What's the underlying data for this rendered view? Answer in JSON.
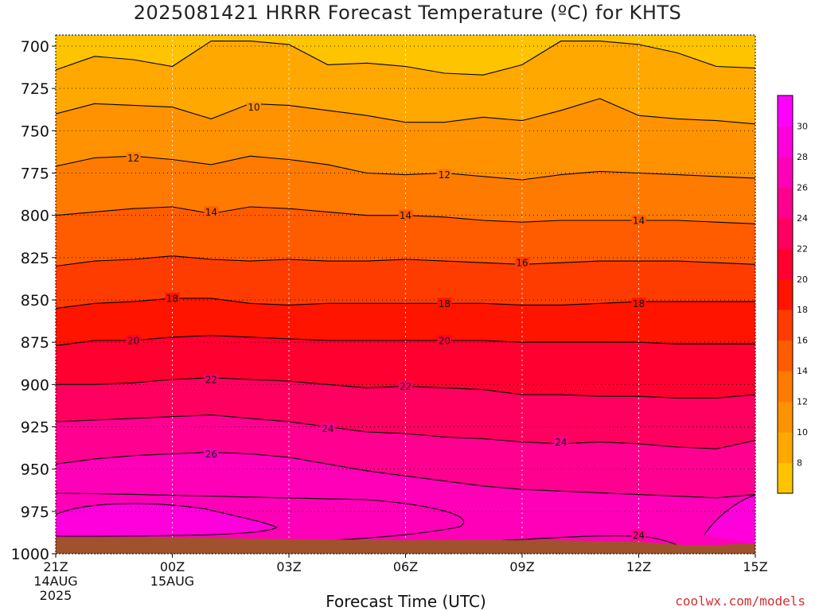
{
  "title": "2025081421 HRRR Forecast Temperature (ºC) for KHTS",
  "xlabel": "Forecast Time (UTC)",
  "credit": "coolwx.com/models",
  "chart_data": {
    "type": "heatmap",
    "title": "2025081421 HRRR Forecast Temperature (ºC) for KHTS",
    "xlabel": "Forecast Time (UTC)",
    "ylabel": "",
    "x_ticks": [
      {
        "label": "21Z",
        "sub": [
          "14AUG",
          "2025"
        ],
        "hour": 0
      },
      {
        "label": "00Z",
        "sub": [
          "15AUG"
        ],
        "hour": 3
      },
      {
        "label": "03Z",
        "sub": [],
        "hour": 6
      },
      {
        "label": "06Z",
        "sub": [],
        "hour": 9
      },
      {
        "label": "09Z",
        "sub": [],
        "hour": 12
      },
      {
        "label": "12Z",
        "sub": [],
        "hour": 15
      },
      {
        "label": "15Z",
        "sub": [],
        "hour": 18
      }
    ],
    "y_ticks": [
      700,
      725,
      750,
      775,
      800,
      825,
      850,
      875,
      900,
      925,
      950,
      975,
      1000
    ],
    "xlim": [
      0,
      18
    ],
    "ylim": [
      1000,
      697
    ],
    "grid": true,
    "colorbar_ticks": [
      8,
      10,
      12,
      14,
      16,
      18,
      20,
      22,
      24,
      26,
      28,
      30
    ],
    "colorbar_levels": [
      {
        "from": 6,
        "to": 8,
        "color": "#FFC400"
      },
      {
        "from": 8,
        "to": 10,
        "color": "#FFA800"
      },
      {
        "from": 10,
        "to": 12,
        "color": "#FF9200"
      },
      {
        "from": 12,
        "to": 14,
        "color": "#FF7A00"
      },
      {
        "from": 14,
        "to": 16,
        "color": "#FF5C00"
      },
      {
        "from": 16,
        "to": 18,
        "color": "#FF3C00"
      },
      {
        "from": 18,
        "to": 20,
        "color": "#FF1400"
      },
      {
        "from": 20,
        "to": 22,
        "color": "#FF0030"
      },
      {
        "from": 22,
        "to": 24,
        "color": "#FF0060"
      },
      {
        "from": 24,
        "to": 26,
        "color": "#FF0090"
      },
      {
        "from": 26,
        "to": 28,
        "color": "#FF00B8"
      },
      {
        "from": 28,
        "to": 30,
        "color": "#FF00DC"
      },
      {
        "from": 30,
        "to": 32,
        "color": "#FF00FF"
      }
    ],
    "contours": [
      {
        "level": 8,
        "label": "",
        "pressures": [
          714,
          706,
          708,
          712,
          697,
          697,
          699,
          711,
          710,
          712,
          716,
          717,
          711,
          697,
          697,
          699,
          704,
          712,
          713
        ]
      },
      {
        "level": 10,
        "label": "10",
        "pressures": [
          740,
          734,
          735,
          736,
          743,
          734,
          735,
          738,
          741,
          745,
          745,
          742,
          744,
          738,
          731,
          741,
          743,
          744,
          746
        ]
      },
      {
        "level": 12,
        "label": "12",
        "pressures": [
          771,
          766,
          765,
          767,
          770,
          765,
          767,
          770,
          775,
          776,
          775,
          777,
          779,
          776,
          774,
          775,
          776,
          777,
          778
        ]
      },
      {
        "level": 14,
        "label": "14",
        "pressures": [
          800,
          798,
          796,
          795,
          799,
          795,
          796,
          798,
          800,
          800,
          801,
          803,
          804,
          803,
          803,
          803,
          803,
          804,
          805
        ]
      },
      {
        "level": 16,
        "label": "16",
        "pressures": [
          830,
          827,
          826,
          824,
          826,
          827,
          826,
          827,
          827,
          826,
          827,
          828,
          829,
          828,
          827,
          827,
          827,
          828,
          829
        ]
      },
      {
        "level": 18,
        "label": "18",
        "pressures": [
          855,
          852,
          851,
          849,
          849,
          852,
          853,
          852,
          852,
          852,
          852,
          852,
          853,
          853,
          852,
          851,
          851,
          851,
          851
        ]
      },
      {
        "level": 20,
        "label": "20",
        "pressures": [
          877,
          874,
          874,
          872,
          871,
          872,
          873,
          874,
          874,
          874,
          874,
          874,
          875,
          875,
          875,
          875,
          876,
          876,
          876
        ]
      },
      {
        "level": 22,
        "label": "22",
        "pressures": [
          900,
          900,
          899,
          897,
          896,
          897,
          898,
          900,
          902,
          901,
          902,
          903,
          906,
          906,
          907,
          907,
          908,
          908,
          906
        ]
      },
      {
        "level": 24,
        "label": "24",
        "pressures": [
          922,
          921,
          920,
          919,
          918,
          920,
          922,
          925,
          928,
          929,
          931,
          932,
          934,
          935,
          934,
          935,
          937,
          938,
          933
        ]
      },
      {
        "level": 26,
        "label": "26",
        "pressures": [
          947,
          944,
          942,
          941,
          940,
          941,
          943,
          947,
          951,
          954,
          957,
          960,
          962,
          963,
          964,
          965,
          966,
          967,
          965
        ]
      }
    ],
    "data_labels": [
      {
        "text": "10",
        "x": 5.1,
        "p": 736
      },
      {
        "text": "12",
        "x": 2.0,
        "p": 766
      },
      {
        "text": "12",
        "x": 10.0,
        "p": 776
      },
      {
        "text": "14",
        "x": 4.0,
        "p": 798
      },
      {
        "text": "14",
        "x": 9.0,
        "p": 800
      },
      {
        "text": "14",
        "x": 15.0,
        "p": 803
      },
      {
        "text": "16",
        "x": 12.0,
        "p": 828
      },
      {
        "text": "18",
        "x": 3.0,
        "p": 849
      },
      {
        "text": "18",
        "x": 10.0,
        "p": 852
      },
      {
        "text": "18",
        "x": 15.0,
        "p": 852
      },
      {
        "text": "20",
        "x": 2.0,
        "p": 874
      },
      {
        "text": "20",
        "x": 10.0,
        "p": 874
      },
      {
        "text": "22",
        "x": 4.0,
        "p": 897
      },
      {
        "text": "22",
        "x": 9.0,
        "p": 901
      },
      {
        "text": "24",
        "x": 7.0,
        "p": 926
      },
      {
        "text": "24",
        "x": 13.0,
        "p": 934
      },
      {
        "text": "24",
        "x": 15.0,
        "p": 989
      },
      {
        "text": "26",
        "x": 4.0,
        "p": 941
      }
    ],
    "surface_color": "#A0522D"
  }
}
